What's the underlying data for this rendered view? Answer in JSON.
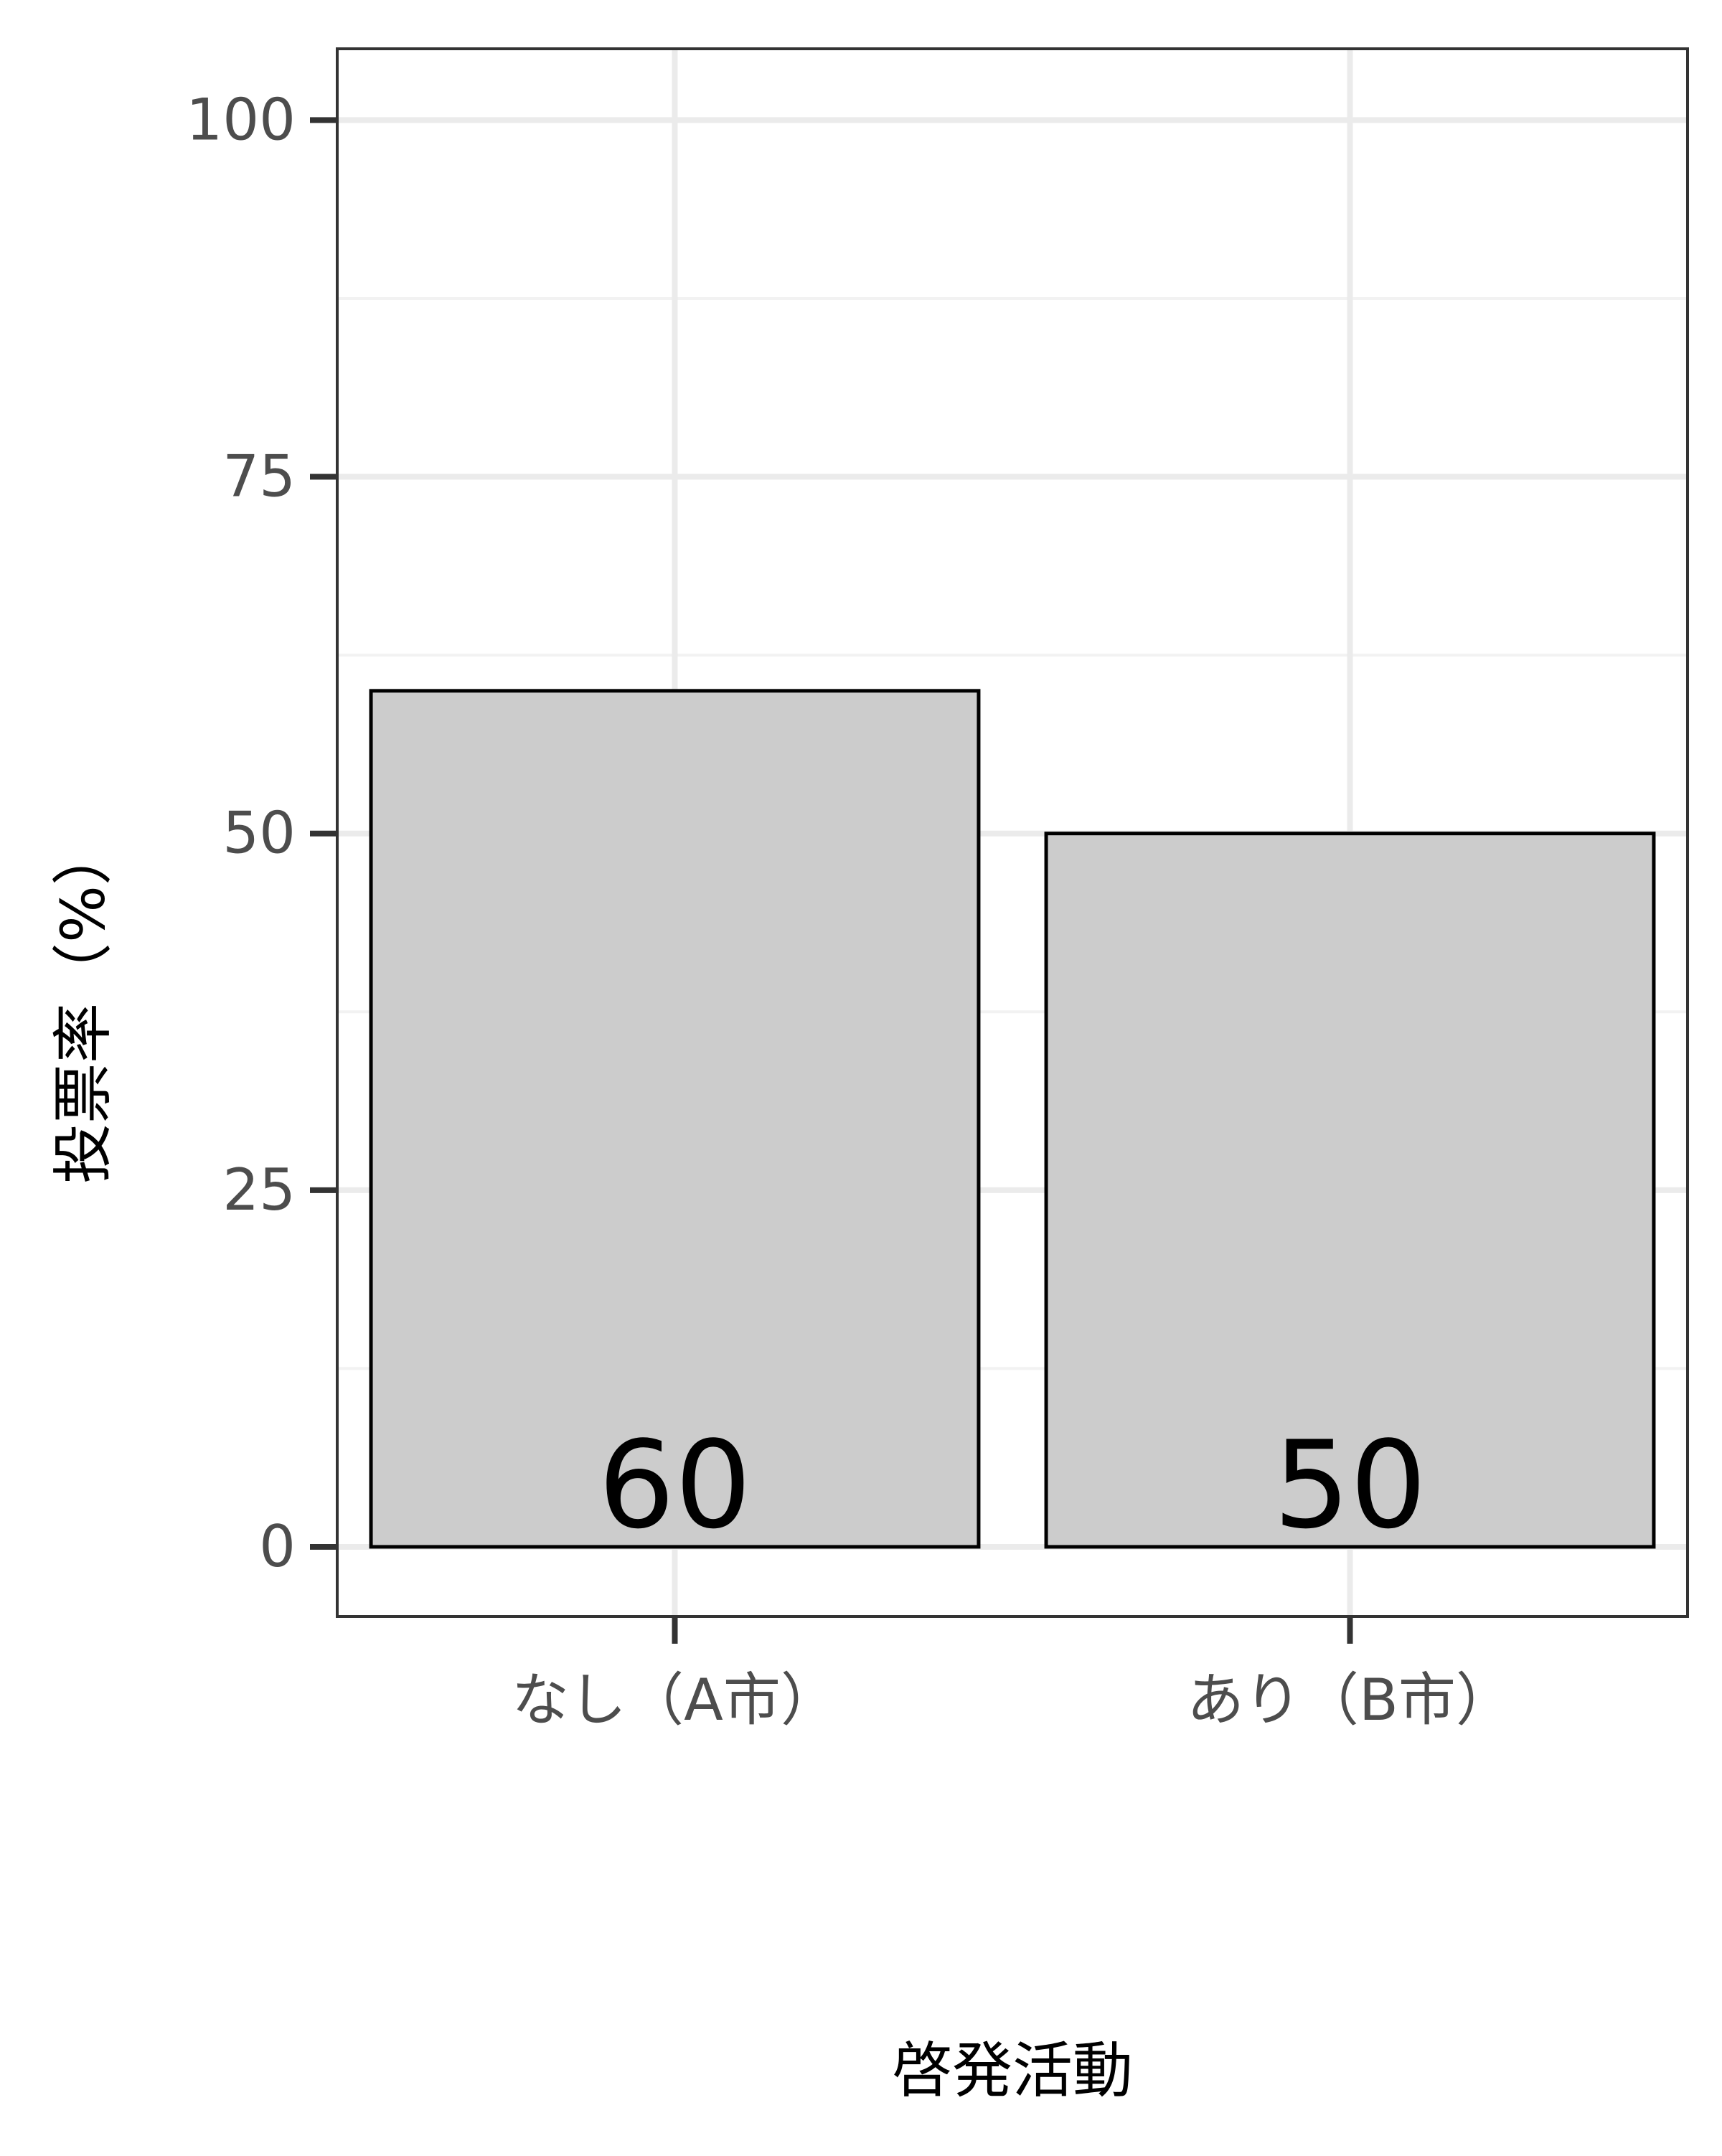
{
  "chart_data": {
    "type": "bar",
    "title": "",
    "xlabel": "啓発活動",
    "ylabel": "投票率（%）",
    "categories": [
      "なし（A市）",
      "あり（B市）"
    ],
    "values": [
      60,
      50
    ],
    "data_labels": [
      "60",
      "50"
    ],
    "yticks": [
      0,
      25,
      50,
      75,
      100
    ],
    "ytick_labels": [
      "0",
      "25",
      "50",
      "75",
      "100"
    ],
    "ylim": [
      -4.88,
      105.0
    ],
    "grid": true,
    "legend": "none",
    "colors": {
      "bar_fill": "#cccccc",
      "bar_stroke": "#000000",
      "panel_border": "#333333",
      "grid_major": "#ebebeb",
      "grid_minor": "#f2f2f2",
      "tick_label": "#4d4d4d",
      "axis_title": "#000000"
    }
  }
}
